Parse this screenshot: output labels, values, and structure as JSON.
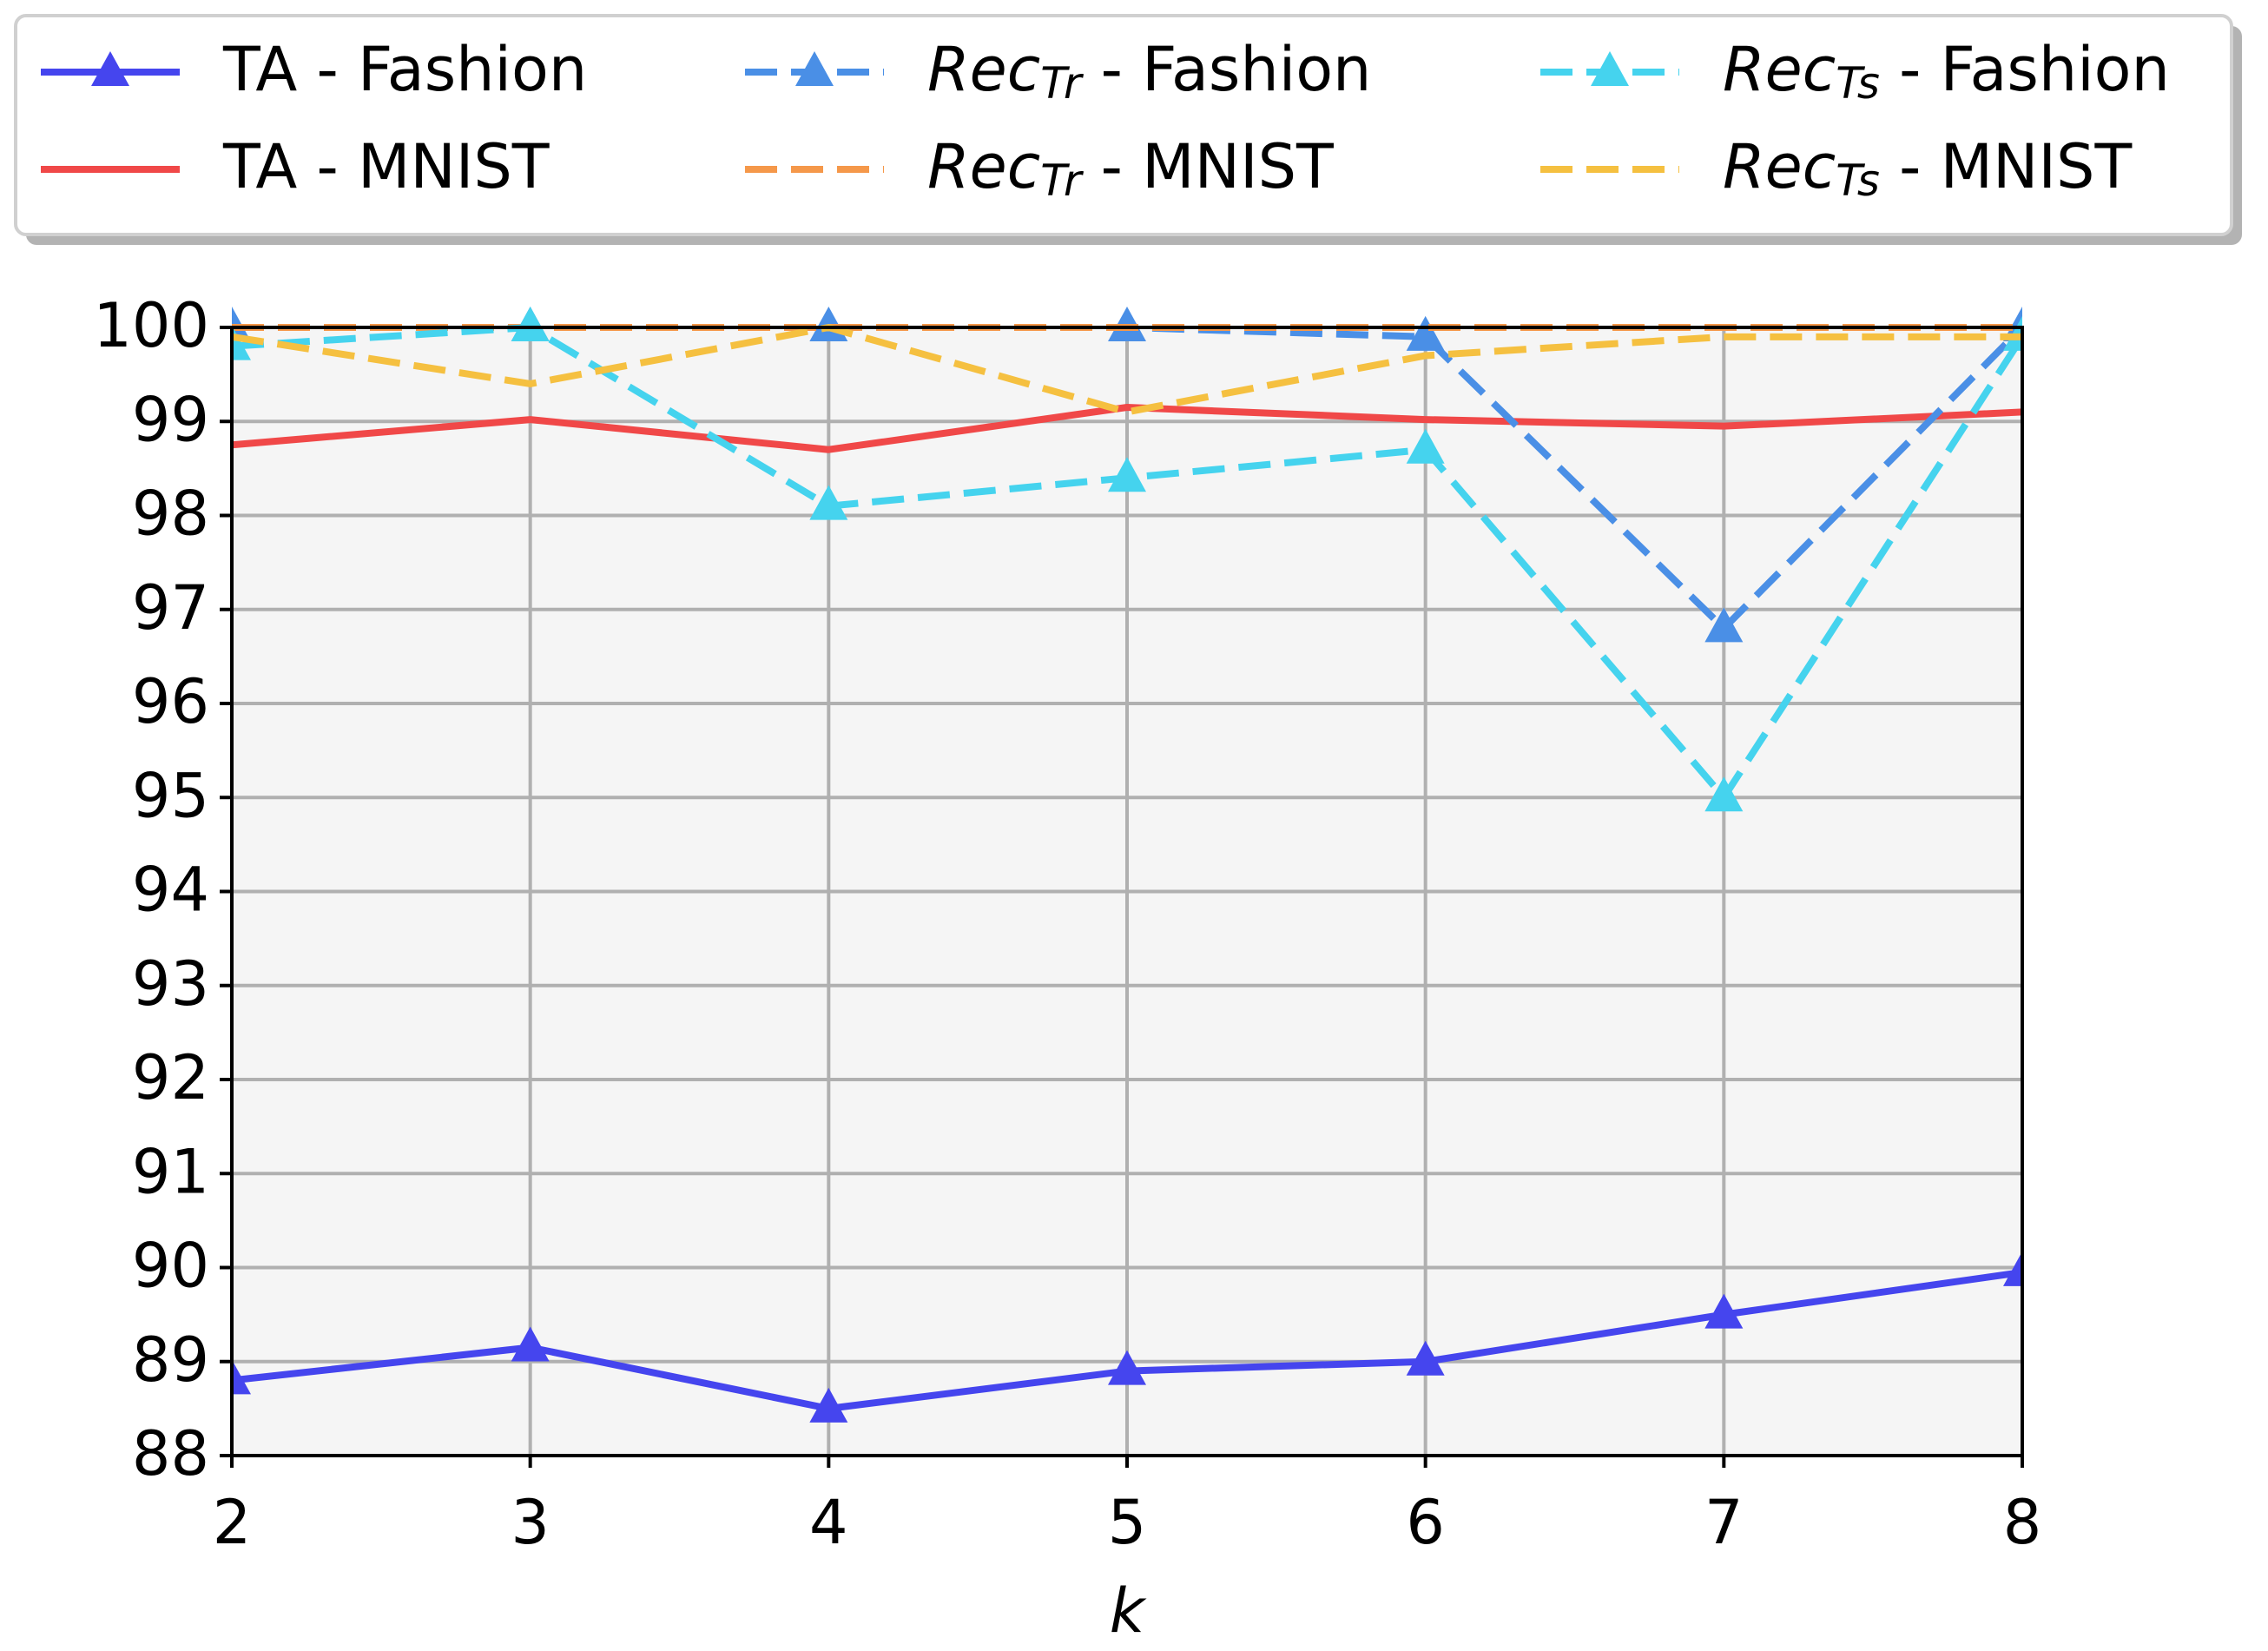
{
  "chart_data": {
    "type": "line",
    "x_label": "k",
    "x": [
      2,
      3,
      4,
      5,
      6,
      7,
      8
    ],
    "xlim": [
      2,
      8
    ],
    "xticks": [
      2,
      3,
      4,
      5,
      6,
      7,
      8
    ],
    "ylim": [
      88,
      100
    ],
    "yticks": [
      88,
      89,
      90,
      91,
      92,
      93,
      94,
      95,
      96,
      97,
      98,
      99,
      100
    ],
    "grid": true,
    "legend": "top",
    "series": [
      {
        "name": "TA - Fashion",
        "color": "#4545ee",
        "dash": false,
        "marker": "triangle",
        "values": [
          88.8,
          89.15,
          88.5,
          88.9,
          89.0,
          89.5,
          89.95
        ]
      },
      {
        "name": "TA - MNIST",
        "color": "#f04848",
        "dash": false,
        "marker": "none",
        "values": [
          98.75,
          99.02,
          98.7,
          99.15,
          99.02,
          98.95,
          99.1
        ]
      },
      {
        "name": "RecTr - Fashion",
        "color": "#4a8fe6",
        "dash": true,
        "marker": "triangle",
        "values": [
          100,
          100,
          100,
          100,
          99.9,
          96.8,
          100
        ]
      },
      {
        "name": "RecTr - MNIST",
        "color": "#f5984a",
        "dash": true,
        "marker": "none",
        "values": [
          100,
          100,
          100,
          100,
          100,
          100,
          100
        ]
      },
      {
        "name": "RecTs - Fashion",
        "color": "#45d3ee",
        "dash": true,
        "marker": "triangle",
        "values": [
          99.8,
          100,
          98.1,
          98.4,
          98.7,
          95.0,
          99.9
        ]
      },
      {
        "name": "RecTs - MNIST",
        "color": "#f5c040",
        "dash": true,
        "marker": "none",
        "values": [
          99.9,
          99.4,
          100,
          99.1,
          99.7,
          99.9,
          99.9
        ]
      }
    ]
  }
}
